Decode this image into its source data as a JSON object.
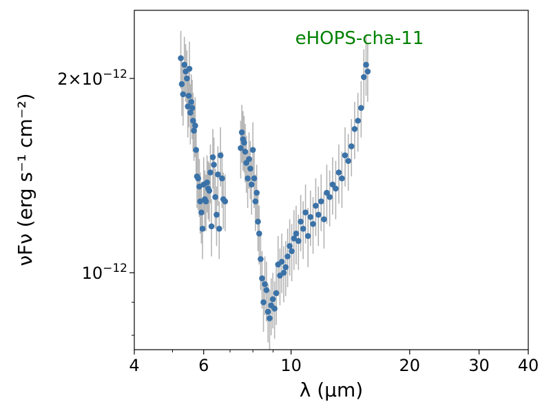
{
  "chart_data": {
    "type": "scatter",
    "annotation": "eHOPS-cha-11",
    "annotation_color": "#008000",
    "xlabel": "λ (μm)",
    "ylabel": "νFν (erg s⁻¹ cm⁻²)",
    "xscale": "log",
    "yscale": "log",
    "xlim": [
      4,
      40
    ],
    "ylim": [
      7.6e-13,
      2.55e-12
    ],
    "x_ticks": [
      {
        "value": 4,
        "label": "4"
      },
      {
        "value": 6,
        "label": "6"
      },
      {
        "value": 10,
        "label": "10"
      },
      {
        "value": 20,
        "label": "20"
      },
      {
        "value": 30,
        "label": "30"
      },
      {
        "value": 40,
        "label": "40"
      }
    ],
    "y_ticks": [
      {
        "value": 1e-12,
        "base": "10",
        "exp": "−12"
      },
      {
        "value": 2e-12,
        "base": "2×10",
        "exp": "−12"
      }
    ],
    "point_color": "#3a72a8",
    "errorbar_color": "#b4b4b4",
    "grid": false,
    "series": [
      {
        "x": [
          5.25,
          5.28,
          5.32,
          5.36,
          5.4,
          5.44,
          5.47,
          5.5,
          5.52,
          5.55,
          5.58,
          5.61,
          5.64,
          5.67,
          5.71,
          5.74,
          5.77,
          5.81,
          5.85,
          5.88,
          5.92,
          5.96,
          6.0,
          6.04,
          6.08,
          6.12,
          6.16,
          6.2,
          6.24,
          6.28,
          6.33,
          6.37,
          6.42,
          6.47,
          6.52,
          6.57,
          6.62,
          6.68,
          6.73,
          6.8,
          7.45,
          7.5,
          7.55,
          7.6,
          7.65,
          7.7,
          7.76,
          7.82,
          7.88,
          7.94,
          8.0,
          8.06,
          8.12,
          8.18,
          8.24,
          8.3,
          8.37,
          8.44,
          8.51,
          8.58,
          8.66,
          8.74,
          8.82,
          8.9,
          8.99,
          9.08,
          9.17,
          9.27,
          9.37,
          9.47,
          9.58,
          9.69,
          9.8,
          9.92,
          10.04,
          10.17,
          10.3,
          10.44,
          10.58,
          10.73,
          10.88,
          11.04,
          11.2,
          11.37,
          11.55,
          11.73,
          11.92,
          12.12,
          12.32,
          12.53,
          12.75,
          12.98,
          13.22,
          13.46,
          13.71,
          13.97,
          14.23,
          14.5,
          14.78,
          15.06,
          15.3,
          15.5,
          15.65
        ],
        "y": [
          2.15e-12,
          1.96e-12,
          1.89e-12,
          2.1e-12,
          2.05e-12,
          2e-12,
          1.81e-12,
          1.88e-12,
          2.07e-12,
          1.77e-12,
          1.84e-12,
          1.8e-12,
          1.72e-12,
          1.66e-12,
          1.69e-12,
          1.55e-12,
          1.41e-12,
          1.4e-12,
          1.36e-12,
          1.29e-12,
          1.24e-12,
          1.17e-12,
          1.37e-12,
          1.3e-12,
          1.29e-12,
          1.38e-12,
          1.35e-12,
          1.34e-12,
          1.43e-12,
          1.18e-12,
          1.51e-12,
          1.47e-12,
          1.31e-12,
          1.23e-12,
          1.42e-12,
          1.17e-12,
          1.52e-12,
          1.4e-12,
          1.3e-12,
          1.29e-12,
          1.56e-12,
          1.65e-12,
          1.61e-12,
          1.59e-12,
          1.54e-12,
          1.48e-12,
          1.4e-12,
          1.5e-12,
          1.45e-12,
          1.37e-12,
          1.55e-12,
          1.4e-12,
          1.29e-12,
          1.33e-12,
          1.2e-12,
          1.15e-12,
          1.05e-12,
          9.8e-13,
          9e-13,
          9.6e-13,
          9.4e-13,
          8.7e-13,
          8.5e-13,
          8.9e-13,
          9.1e-13,
          8.8e-13,
          9.3e-13,
          1.03e-12,
          9.9e-13,
          1.04e-12,
          1e-12,
          1.02e-12,
          1.06e-12,
          1.1e-12,
          1.08e-12,
          1.13e-12,
          1.15e-12,
          1.12e-12,
          1.2e-12,
          1.17e-12,
          1.24e-12,
          1.14e-12,
          1.22e-12,
          1.19e-12,
          1.27e-12,
          1.23e-12,
          1.29e-12,
          1.21e-12,
          1.33e-12,
          1.31e-12,
          1.37e-12,
          1.35e-12,
          1.43e-12,
          1.4e-12,
          1.52e-12,
          1.49e-12,
          1.57e-12,
          1.67e-12,
          1.72e-12,
          1.8e-12,
          2.01e-12,
          2.1e-12,
          2.05e-12
        ],
        "yerr": [
          2.2e-13,
          2.1e-13,
          2e-13,
          2.2e-13,
          2.1e-13,
          2.1e-13,
          1.9e-13,
          2e-13,
          2.1e-13,
          1.9e-13,
          1.9e-13,
          1.9e-13,
          1.8e-13,
          1.7e-13,
          1.8e-13,
          1.6e-13,
          1.5e-13,
          1.5e-13,
          1.4e-13,
          1.4e-13,
          1.3e-13,
          1.2e-13,
          1.4e-13,
          1.4e-13,
          1.3e-13,
          1.4e-13,
          1.4e-13,
          1.4e-13,
          1.5e-13,
          1.2e-13,
          1.6e-13,
          1.5e-13,
          1.4e-13,
          1.3e-13,
          1.5e-13,
          1.2e-13,
          1.6e-13,
          1.4e-13,
          1.3e-13,
          1.3e-13,
          1.6e-13,
          1.7e-13,
          1.7e-13,
          1.6e-13,
          1.6e-13,
          1.5e-13,
          1.4e-13,
          1.5e-13,
          1.5e-13,
          1.4e-13,
          1.6e-13,
          1.4e-13,
          1.3e-13,
          1.4e-13,
          1.2e-13,
          1.2e-13,
          1.1e-13,
          1e-13,
          9e-14,
          1e-13,
          1e-13,
          9e-14,
          9e-14,
          9e-14,
          9e-14,
          9e-14,
          1e-13,
          1.1e-13,
          1e-13,
          1.1e-13,
          1e-13,
          1e-13,
          1.1e-13,
          1.1e-13,
          1.1e-13,
          1.2e-13,
          1.2e-13,
          1.1e-13,
          1.2e-13,
          1.2e-13,
          1.3e-13,
          1.2e-13,
          1.2e-13,
          1.2e-13,
          1.3e-13,
          1.3e-13,
          1.3e-13,
          1.2e-13,
          1.4e-13,
          1.3e-13,
          1.4e-13,
          1.4e-13,
          1.5e-13,
          1.4e-13,
          1.6e-13,
          1.5e-13,
          1.6e-13,
          1.7e-13,
          1.8e-13,
          1.8e-13,
          2.1e-13,
          2.2e-13,
          2.1e-13
        ]
      }
    ]
  }
}
